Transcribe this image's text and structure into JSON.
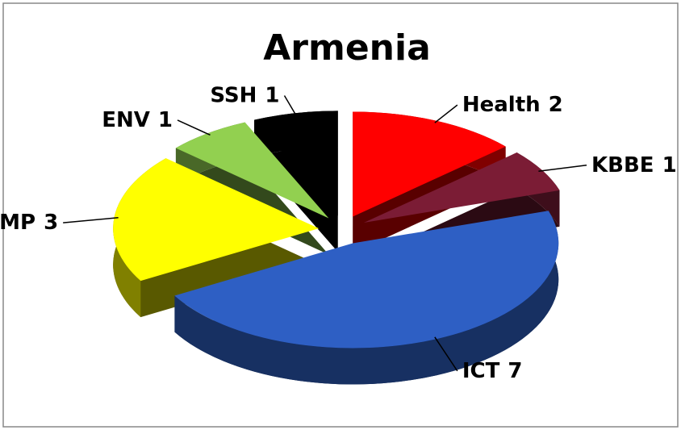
{
  "chart_data": {
    "type": "pie",
    "title": "Armenia",
    "categories": [
      "Health",
      "KBBE",
      "ICT",
      "NMP",
      "ENV",
      "SSH"
    ],
    "values": [
      2,
      1,
      7,
      3,
      1,
      1
    ],
    "colors": [
      "#ff0000",
      "#7b1c35",
      "#2e5fc4",
      "#ffff00",
      "#92d050",
      "#000000"
    ]
  }
}
